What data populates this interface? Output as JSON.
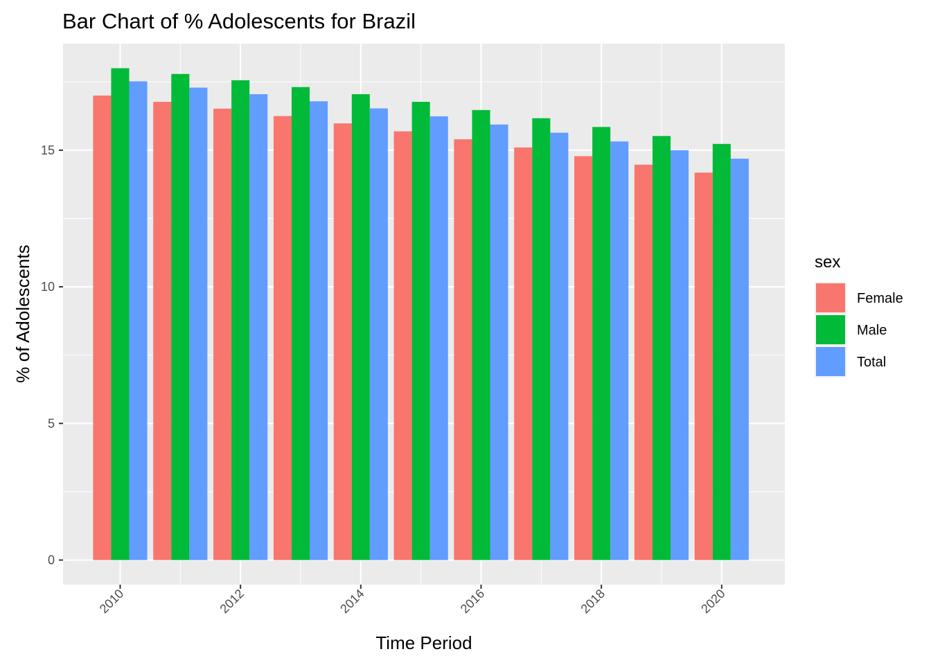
{
  "chart_data": {
    "type": "bar",
    "title": "Bar Chart of % Adolescents for Brazil",
    "xlabel": "Time Period",
    "ylabel": "% of Adolescents",
    "x": [
      2010,
      2011,
      2012,
      2013,
      2014,
      2015,
      2016,
      2017,
      2018,
      2019,
      2020
    ],
    "x_ticks": [
      "2010",
      "2012",
      "2014",
      "2016",
      "2018",
      "2020"
    ],
    "y_ticks": [
      "0",
      "5",
      "10",
      "15"
    ],
    "ylim": [
      -0.9,
      18.9
    ],
    "xlim": [
      2009.05,
      2021.05
    ],
    "grid": true,
    "legend_title": "sex",
    "legend_position": "right",
    "series": [
      {
        "name": "Female",
        "color": "#F8766D",
        "values": [
          17.0,
          16.77,
          16.52,
          16.25,
          15.98,
          15.69,
          15.4,
          15.1,
          14.78,
          14.47,
          14.18
        ]
      },
      {
        "name": "Male",
        "color": "#00BA38",
        "values": [
          18.0,
          17.79,
          17.56,
          17.31,
          17.05,
          16.77,
          16.47,
          16.17,
          15.85,
          15.52,
          15.23
        ]
      },
      {
        "name": "Total",
        "color": "#619CFF",
        "values": [
          17.52,
          17.29,
          17.05,
          16.79,
          16.53,
          16.24,
          15.94,
          15.64,
          15.32,
          15.0,
          14.69
        ]
      }
    ]
  }
}
